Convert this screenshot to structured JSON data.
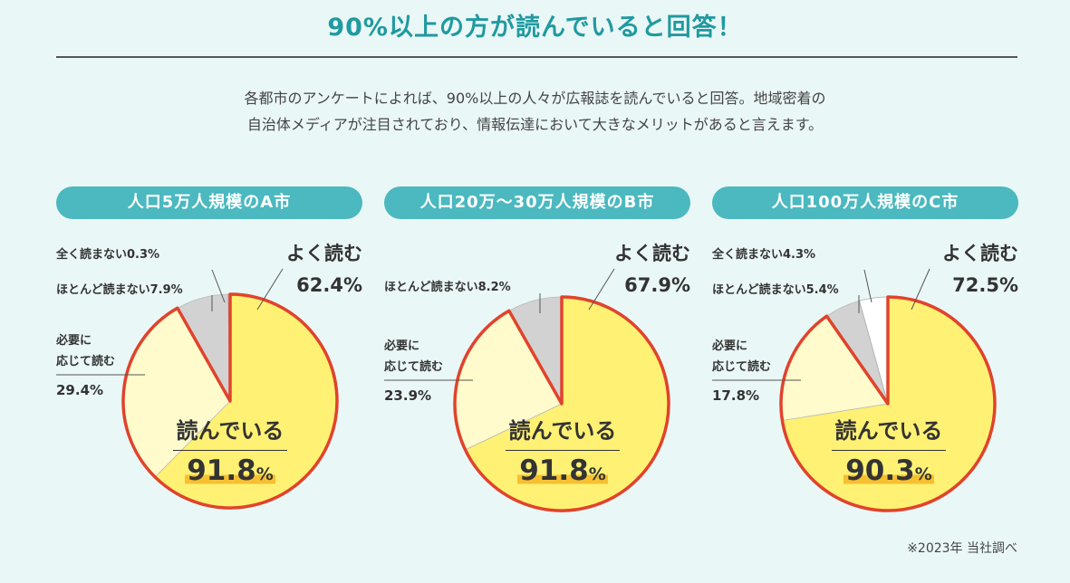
{
  "title": "90%以上の方が読んでいると回答！",
  "intro": {
    "line1": "各都市のアンケートによれば、90%以上の人々が広報誌を読んでいると回答。地域密着の",
    "line2": "自治体メディアが注目されており、情報伝達において大きなメリットがあると言えます。"
  },
  "colors": {
    "accent": "#1f9aa0",
    "pill": "#4bb9bf",
    "yoku": "#fff173",
    "hitsuyou": "#fffbcc",
    "hotondo": "#d2d2d2",
    "mattaku": "#ffffff",
    "outline": "#e0432c"
  },
  "footnote": "※2023年 当社調べ",
  "chart_data": [
    {
      "type": "pie",
      "title": "人口5万人規模のA市",
      "slices": [
        {
          "label": "よく読む",
          "value": 62.4,
          "display": "62.4%"
        },
        {
          "label": "必要に応じて読む",
          "value": 29.4,
          "display": "29.4%"
        },
        {
          "label": "ほとんど読まない",
          "value": 7.9,
          "display": "7.9%"
        },
        {
          "label": "全く読まない",
          "value": 0.3,
          "display": "0.3%"
        }
      ],
      "center_label": "読んでいる",
      "center_value": "91.8",
      "center_unit": "%"
    },
    {
      "type": "pie",
      "title": "人口20万〜30万人規模のB市",
      "slices": [
        {
          "label": "よく読む",
          "value": 67.9,
          "display": "67.9%"
        },
        {
          "label": "必要に応じて読む",
          "value": 23.9,
          "display": "23.9%"
        },
        {
          "label": "ほとんど読まない",
          "value": 8.2,
          "display": "8.2%"
        }
      ],
      "center_label": "読んでいる",
      "center_value": "91.8",
      "center_unit": "%"
    },
    {
      "type": "pie",
      "title": "人口100万人規模のC市",
      "slices": [
        {
          "label": "よく読む",
          "value": 72.5,
          "display": "72.5%"
        },
        {
          "label": "必要に応じて読む",
          "value": 17.8,
          "display": "17.8%"
        },
        {
          "label": "ほとんど読まない",
          "value": 5.4,
          "display": "5.4%"
        },
        {
          "label": "全く読まない",
          "value": 4.3,
          "display": "4.3%"
        }
      ],
      "center_label": "読んでいる",
      "center_value": "90.3",
      "center_unit": "%"
    }
  ],
  "labels": {
    "a": {
      "mattaku": "全く読まない0.3%",
      "hotondo": "ほとんど読まない7.9%",
      "hitsuyou1": "必要に",
      "hitsuyou2": "応じて読む",
      "hitsuyou3": "29.4%",
      "yoku1": "よく読む",
      "yoku2": "62.4%"
    },
    "b": {
      "hotondo": "ほとんど読まない8.2%",
      "hitsuyou1": "必要に",
      "hitsuyou2": "応じて読む",
      "hitsuyou3": "23.9%",
      "yoku1": "よく読む",
      "yoku2": "67.9%"
    },
    "c": {
      "mattaku": "全く読まない4.3%",
      "hotondo": "ほとんど読まない5.4%",
      "hitsuyou1": "必要に",
      "hitsuyou2": "応じて読む",
      "hitsuyou3": "17.8%",
      "yoku1": "よく読む",
      "yoku2": "72.5%"
    }
  }
}
